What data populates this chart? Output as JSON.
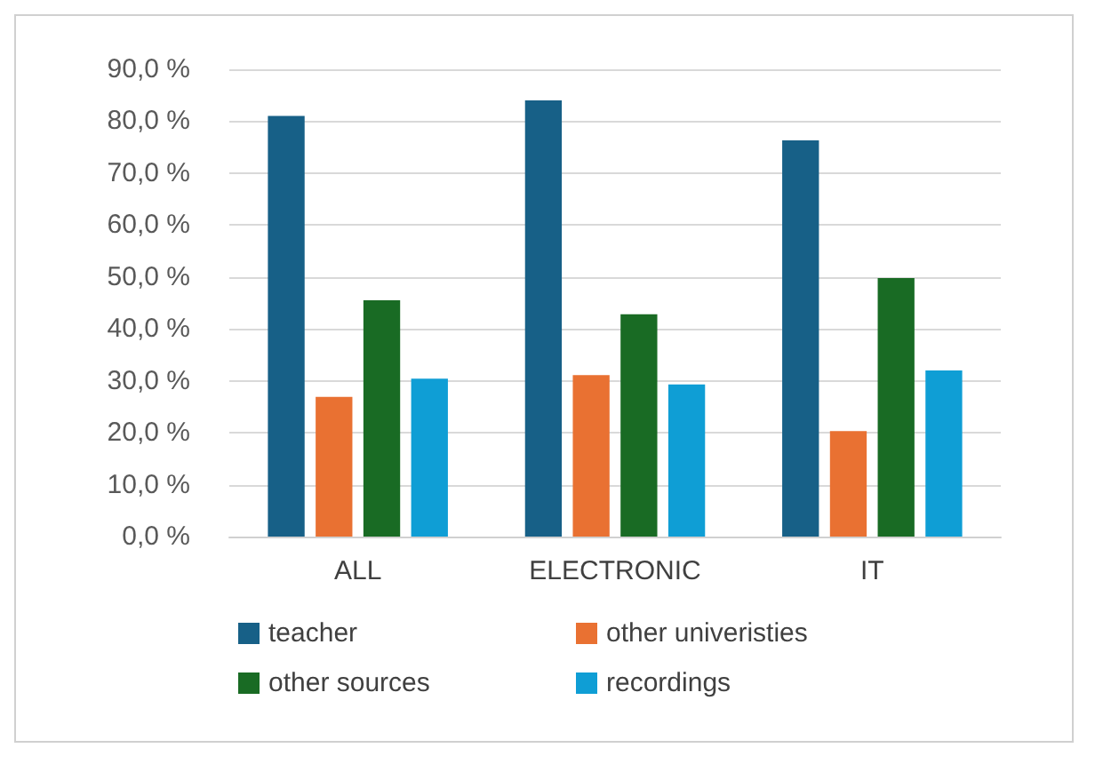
{
  "chart_data": {
    "type": "bar",
    "categories": [
      "ALL",
      "ELECTRONIC",
      "IT"
    ],
    "series": [
      {
        "name": "teacher",
        "color": "#176087",
        "values": [
          81.0,
          84.0,
          76.3
        ]
      },
      {
        "name": "other univeristies",
        "color": "#e97132",
        "values": [
          26.9,
          31.1,
          20.3
        ]
      },
      {
        "name": "other sources",
        "color": "#196b24",
        "values": [
          45.5,
          42.8,
          49.8
        ]
      },
      {
        "name": "recordings",
        "color": "#0f9ed5",
        "values": [
          30.4,
          29.3,
          32.0
        ]
      }
    ],
    "ylim": [
      0,
      90
    ],
    "yticks": [
      {
        "value": 0,
        "label": "0,0 %"
      },
      {
        "value": 10,
        "label": "10,0 %"
      },
      {
        "value": 20,
        "label": "20,0 %"
      },
      {
        "value": 30,
        "label": "30,0 %"
      },
      {
        "value": 40,
        "label": "40,0 %"
      },
      {
        "value": 50,
        "label": "50,0 %"
      },
      {
        "value": 60,
        "label": "60,0 %"
      },
      {
        "value": 70,
        "label": "70,0 %"
      },
      {
        "value": 80,
        "label": "80,0 %"
      },
      {
        "value": 90,
        "label": "90,0 %"
      }
    ],
    "grid": "y",
    "legend": "bottom"
  }
}
